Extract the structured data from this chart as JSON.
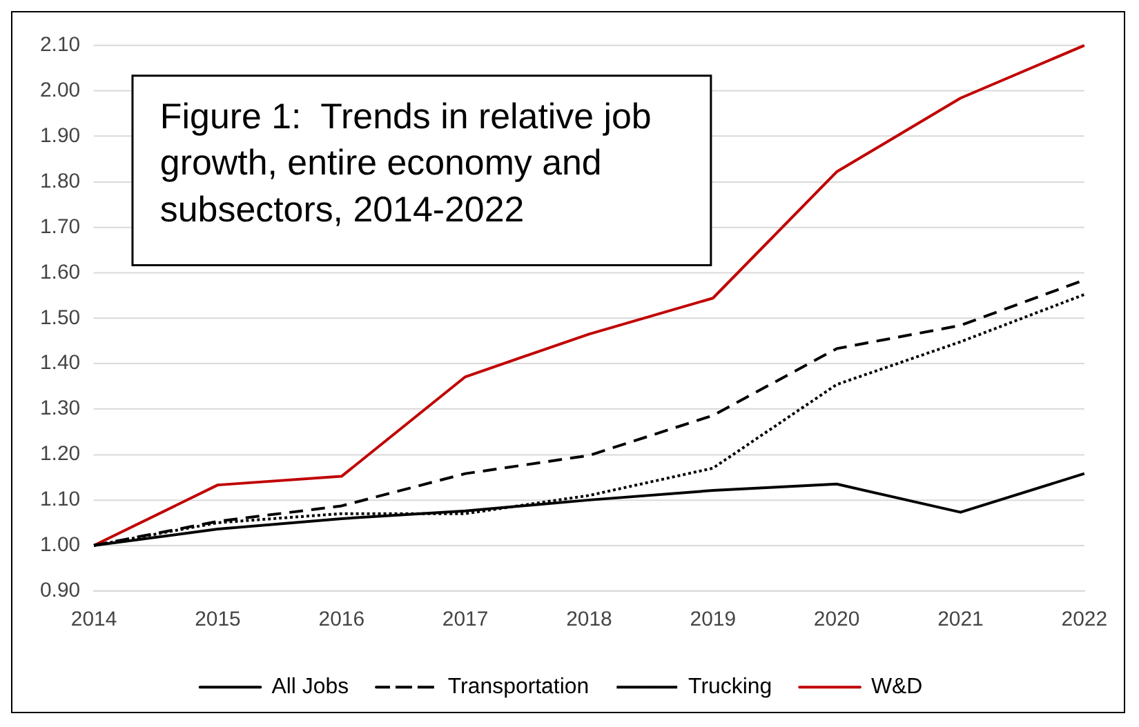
{
  "chart_data": {
    "type": "line",
    "title": "Figure 1:  Trends in relative job growth, entire economy and subsectors, 2014-2022",
    "categories": [
      "2014",
      "2015",
      "2016",
      "2017",
      "2018",
      "2019",
      "2020",
      "2021",
      "2022"
    ],
    "series": [
      {
        "name": "All Jobs",
        "color": "#000000",
        "line_style": "solid",
        "values": [
          1.0,
          1.036,
          1.059,
          1.076,
          1.1,
          1.121,
          1.135,
          1.073,
          1.158
        ]
      },
      {
        "name": "Transportation",
        "color": "#000000",
        "line_style": "dashed",
        "values": [
          1.0,
          1.053,
          1.087,
          1.158,
          1.198,
          1.286,
          1.433,
          1.484,
          1.584
        ]
      },
      {
        "name": "Trucking",
        "color": "#000000",
        "line_style": "dotted",
        "values": [
          1.0,
          1.05,
          1.07,
          1.07,
          1.11,
          1.17,
          1.354,
          1.448,
          1.552
        ]
      },
      {
        "name": "W&D",
        "color": "#c00000",
        "line_style": "solid",
        "values": [
          1.0,
          1.133,
          1.152,
          1.371,
          1.465,
          1.544,
          1.822,
          1.984,
          2.1
        ]
      }
    ],
    "ylim": [
      0.9,
      2.1
    ],
    "yticks": [
      {
        "value": 0.9,
        "label": "0.90"
      },
      {
        "value": 1.0,
        "label": "1.00"
      },
      {
        "value": 1.1,
        "label": "1.10"
      },
      {
        "value": 1.2,
        "label": "1.20"
      },
      {
        "value": 1.3,
        "label": "1.30"
      },
      {
        "value": 1.4,
        "label": "1.40"
      },
      {
        "value": 1.5,
        "label": "1.50"
      },
      {
        "value": 1.6,
        "label": "1.60"
      },
      {
        "value": 1.7,
        "label": "1.70"
      },
      {
        "value": 1.8,
        "label": "1.80"
      },
      {
        "value": 1.9,
        "label": "1.90"
      },
      {
        "value": 2.0,
        "label": "2.00"
      },
      {
        "value": 2.1,
        "label": "2.10"
      }
    ],
    "grid": "y",
    "legend": "bottom",
    "marker": "none"
  }
}
